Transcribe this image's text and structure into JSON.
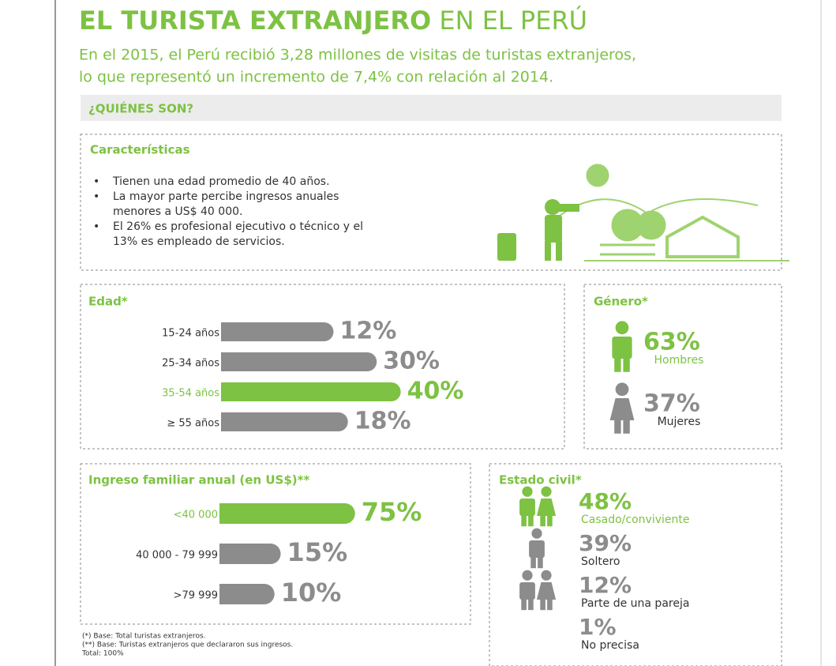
{
  "header": {
    "title_bold": "EL TURISTA EXTRANJERO",
    "title_light": "EN EL PERÚ",
    "subtitle": [
      "En el 2015, el Perú recibió 3,28 millones de visitas de turistas extranjeros,",
      "lo que representó un incremento de 7,4% con relación al 2014."
    ]
  },
  "section": "¿QUIÉNES SON?",
  "characteristics": {
    "title": "Características",
    "items": [
      [
        "Tienen una edad promedio de 40 años."
      ],
      [
        "La mayor parte percibe ingresos anuales",
        "menores a US$ 40 000."
      ],
      [
        "El 26% es profesional ejecutivo o técnico y el",
        "13% es empleado de servicios."
      ]
    ]
  },
  "chart_data": [
    {
      "type": "bar",
      "title": "Edad*",
      "categories": [
        "15-24 años",
        "25-34 años",
        "35-54 años",
        "≥ 55 años"
      ],
      "values": [
        12,
        30,
        40,
        18
      ],
      "value_labels": [
        "12%",
        "30%",
        "40%",
        "18%"
      ],
      "colors": [
        "#8c8c8c",
        "#8c8c8c",
        "#7dc242",
        "#8c8c8c"
      ]
    },
    {
      "type": "bar",
      "title": "Ingreso familiar anual  (en US$)**",
      "categories": [
        "<40 000",
        "40 000 - 79 999",
        ">79 999"
      ],
      "values": [
        75,
        15,
        10
      ],
      "value_labels": [
        "75%",
        "15%",
        "10%"
      ],
      "colors": [
        "#7dc242",
        "#8c8c8c",
        "#8c8c8c"
      ]
    },
    {
      "type": "pictogram",
      "title": "Género*",
      "categories": [
        "Hombres",
        "Mujeres"
      ],
      "values": [
        63,
        37
      ],
      "value_labels": [
        "63%",
        "37%"
      ],
      "colors": [
        "#7dc242",
        "#8c8c8c"
      ]
    },
    {
      "type": "pictogram",
      "title": "Estado civil*",
      "categories": [
        "Casado/conviviente",
        "Soltero",
        "Parte de una pareja",
        "No precisa"
      ],
      "values": [
        48,
        39,
        12,
        1
      ],
      "value_labels": [
        "48%",
        "39%",
        "12%",
        "1%"
      ],
      "colors": [
        "#7dc242",
        "#8c8c8c",
        "#8c8c8c",
        "#8c8c8c"
      ]
    }
  ],
  "footnotes": [
    "(*)  Base: Total turistas extranjeros.",
    "(**) Base: Turistas extranjeros que declararon sus ingresos.",
    "Total: 100%"
  ]
}
